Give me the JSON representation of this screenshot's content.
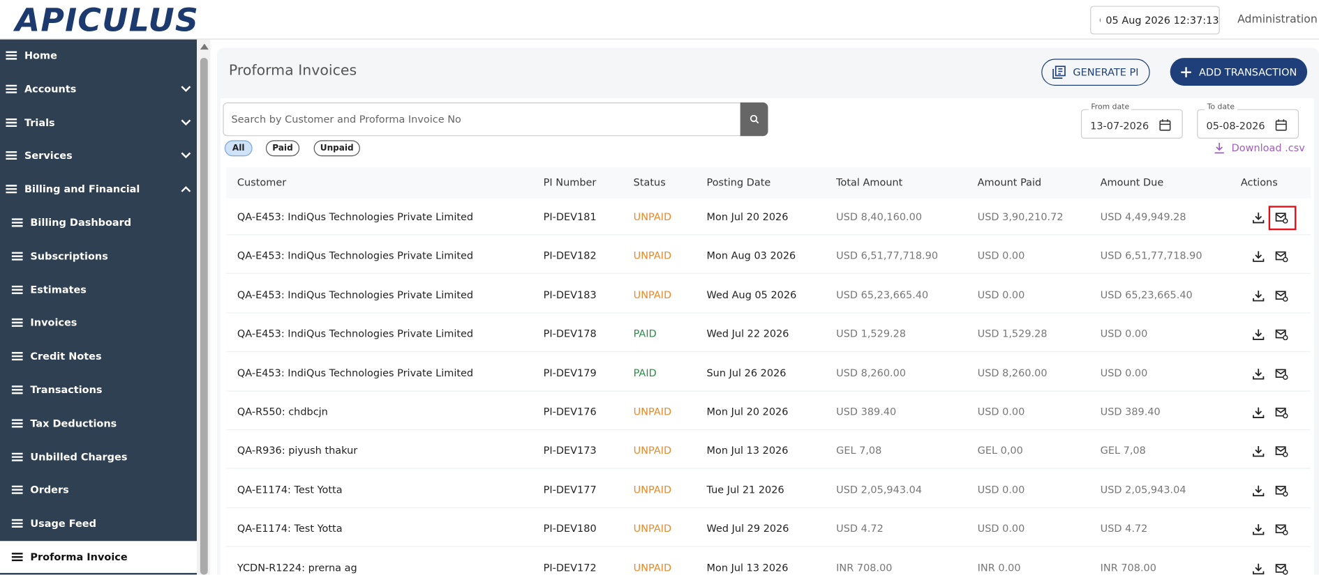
{
  "header": {
    "logo": "APICULUS",
    "datetime": "05 Aug 2026 12:37:13",
    "user": "Administration"
  },
  "sidebar": {
    "items": [
      "Home",
      "Accounts",
      "Trials",
      "Services",
      "Billing and Financial",
      "Billing Dashboard",
      "Subscriptions",
      "Estimates",
      "Invoices",
      "Credit Notes",
      "Transactions",
      "Tax Deductions",
      "Unbilled Charges",
      "Orders",
      "Usage Feed",
      "Proforma Invoice"
    ]
  },
  "page": {
    "title": "Proforma Invoices",
    "generate_button": "GENERATE PI",
    "add_button": "ADD TRANSACTION",
    "search_placeholder": "Search by Customer and Proforma Invoice No",
    "filters": [
      "All",
      "Paid",
      "Unpaid"
    ],
    "from_label": "From date",
    "from_date": "13-07-2026",
    "to_label": "To date",
    "to_date": "05-08-2026",
    "download": "Download .csv"
  },
  "table": {
    "columns": [
      "Customer",
      "PI Number",
      "Status",
      "Posting Date",
      "Total Amount",
      "Amount Paid",
      "Amount Due",
      "Actions"
    ],
    "status_colors": {
      "UNPAID": "#e8892b",
      "PAID": "#2e8b47"
    },
    "rows": [
      [
        "QA-E453: IndiQus Technologies Private Limited",
        "PI-DEV181",
        "UNPAID",
        "Mon Jul 20 2026",
        "USD 8,40,160.00",
        "USD 3,90,210.72",
        "USD 4,49,949.28"
      ],
      [
        "QA-E453: IndiQus Technologies Private Limited",
        "PI-DEV182",
        "UNPAID",
        "Mon Aug 03 2026",
        "USD 6,51,77,718.90",
        "USD 0.00",
        "USD 6,51,77,718.90"
      ],
      [
        "QA-E453: IndiQus Technologies Private Limited",
        "PI-DEV183",
        "UNPAID",
        "Wed Aug 05 2026",
        "USD 65,23,665.40",
        "USD 0.00",
        "USD 65,23,665.40"
      ],
      [
        "QA-E453: IndiQus Technologies Private Limited",
        "PI-DEV178",
        "PAID",
        "Wed Jul 22 2026",
        "USD 1,529.28",
        "USD 1,529.28",
        "USD 0.00"
      ],
      [
        "QA-E453: IndiQus Technologies Private Limited",
        "PI-DEV179",
        "PAID",
        "Sun Jul 26 2026",
        "USD 8,260.00",
        "USD 8,260.00",
        "USD 0.00"
      ],
      [
        "QA-R550: chdbcjn",
        "PI-DEV176",
        "UNPAID",
        "Mon Jul 20 2026",
        "USD 389.40",
        "USD 0.00",
        "USD 389.40"
      ],
      [
        "QA-R936: piyush thakur",
        "PI-DEV173",
        "UNPAID",
        "Mon Jul 13 2026",
        "GEL 7,08",
        "GEL 0,00",
        "GEL 7,08"
      ],
      [
        "QA-E1174: Test Yotta",
        "PI-DEV177",
        "UNPAID",
        "Tue Jul 21 2026",
        "USD 2,05,943.04",
        "USD 0.00",
        "USD 2,05,943.04"
      ],
      [
        "QA-E1174: Test Yotta",
        "PI-DEV180",
        "UNPAID",
        "Wed Jul 29 2026",
        "USD 4.72",
        "USD 0.00",
        "USD 4.72"
      ],
      [
        "YCDN-R1224: prerna ag",
        "PI-DEV172",
        "UNPAID",
        "Mon Jul 13 2026",
        "INR 708.00",
        "INR 0.00",
        "INR 708.00"
      ]
    ]
  }
}
